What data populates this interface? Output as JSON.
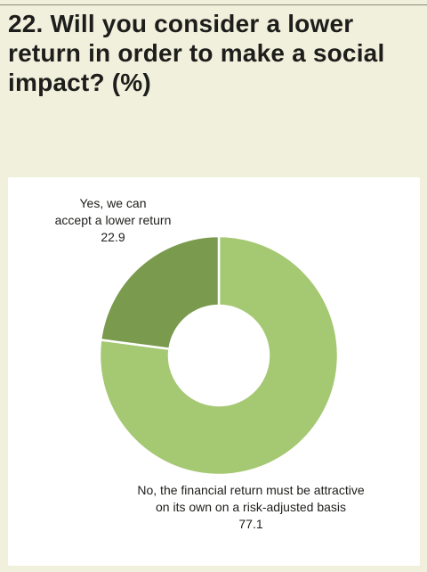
{
  "title": "22. Will you consider a lower return in order to make a social impact? (%)",
  "colors": {
    "background": "#f1f0dc",
    "panel": "#ffffff",
    "slice_no": "#a5c873",
    "slice_yes": "#7a9a4e",
    "title_text": "#1d1d1b"
  },
  "chart_data": {
    "type": "pie",
    "title": "22. Will you consider a lower return in order to make a social impact? (%)",
    "donut": true,
    "slices": [
      {
        "label_lines": [
          "No, the financial return must be attractive",
          "on its own on a risk-adjusted basis"
        ],
        "value": 77.1,
        "value_text": "77.1",
        "color": "#a5c873"
      },
      {
        "label_lines": [
          "Yes, we can",
          "accept a lower return"
        ],
        "value": 22.9,
        "value_text": "22.9",
        "color": "#7a9a4e"
      }
    ]
  }
}
